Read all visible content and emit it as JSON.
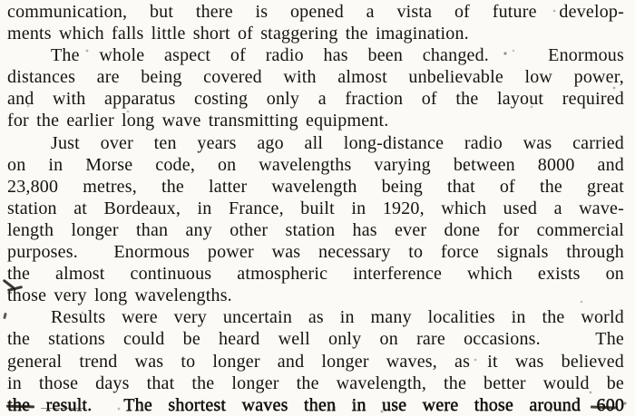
{
  "document": {
    "background": "#fbfaf6",
    "ink": "#17130e",
    "lines": [
      {
        "text": "communication, but there is opened a vista of future develop-",
        "indent": false,
        "justify": true,
        "heavy": false
      },
      {
        "text": "ments which falls little short of staggering the imagination.",
        "indent": false,
        "justify": false,
        "heavy": false
      },
      {
        "text": "The whole aspect of radio has been changed.   Enormous",
        "indent": true,
        "justify": true,
        "heavy": false
      },
      {
        "text": "distances are being covered with almost unbelievable low power,",
        "indent": false,
        "justify": true,
        "heavy": false
      },
      {
        "text": "and with apparatus costing only a fraction of the layout required",
        "indent": false,
        "justify": true,
        "heavy": false
      },
      {
        "text": "for the earlier long wave transmitting equipment.",
        "indent": false,
        "justify": false,
        "heavy": false
      },
      {
        "text": "Just over ten years ago all long-distance radio was carried",
        "indent": true,
        "justify": true,
        "heavy": false
      },
      {
        "text": "on in Morse code, on wavelengths varying between 8000 and",
        "indent": false,
        "justify": true,
        "heavy": false
      },
      {
        "text": "23,800 metres, the latter wavelength being that of the great",
        "indent": false,
        "justify": true,
        "heavy": false
      },
      {
        "text": "station at Bordeaux, in France, built in 1920, which used a wave-",
        "indent": false,
        "justify": true,
        "heavy": false
      },
      {
        "text": "length longer than any other station has ever done for commercial",
        "indent": false,
        "justify": true,
        "heavy": false
      },
      {
        "text": "purposes.  Enormous power was necessary to force signals through",
        "indent": false,
        "justify": true,
        "heavy": false
      },
      {
        "text": "the almost continuous atmospheric interference which exists on",
        "indent": false,
        "justify": true,
        "heavy": false
      },
      {
        "text": "those very long wavelengths.",
        "indent": false,
        "justify": false,
        "heavy": false
      },
      {
        "text": "Results were very uncertain as in many localities in the world",
        "indent": true,
        "justify": true,
        "heavy": false
      },
      {
        "text": "the stations could be heard well only on rare occasions.   The",
        "indent": false,
        "justify": true,
        "heavy": false
      },
      {
        "text": "general trend was to longer and longer waves, as it was believed",
        "indent": false,
        "justify": true,
        "heavy": false
      },
      {
        "text": "in those days that the longer the wavelength, the better would be",
        "indent": false,
        "justify": true,
        "heavy": false
      },
      {
        "text": "the result.  The shortest waves then in use were those around 600",
        "indent": false,
        "justify": true,
        "heavy": true
      }
    ]
  }
}
